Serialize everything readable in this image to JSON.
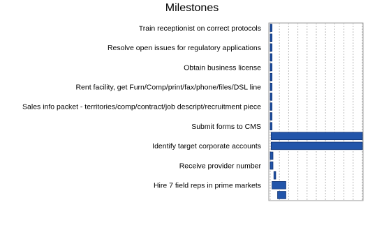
{
  "chart_data": {
    "type": "gantt",
    "title": "Milestones",
    "categories": [
      "Train receptionist on correct protocols",
      null,
      "Resolve open issues for regulatory applications",
      null,
      "Obtain business license",
      null,
      "Rent facility, get Furn/Comp/print/fax/phone/files/DSL line",
      null,
      "Sales info packet - territories/comp/contract/job descript/recruitment piece",
      null,
      "Submit forms to CMS",
      null,
      "Identify target corporate accounts",
      null,
      "Receive provider number",
      null,
      "Hire 7 field reps in prime markets",
      null
    ],
    "series": [
      {
        "color": "#2255aa",
        "starts": [
          0,
          0,
          0,
          0,
          0,
          0,
          0,
          0,
          0,
          0,
          0,
          1,
          1,
          0,
          0,
          4,
          2,
          8
        ],
        "ends": [
          2,
          2,
          2,
          2,
          2,
          2,
          2,
          2,
          2,
          2,
          2,
          100,
          100,
          3,
          3,
          6,
          17,
          17
        ]
      }
    ],
    "xlim": [
      0,
      100
    ],
    "xticks": [
      0,
      10,
      20,
      30,
      40,
      50,
      60,
      70,
      80,
      90,
      100
    ],
    "grid": true
  }
}
